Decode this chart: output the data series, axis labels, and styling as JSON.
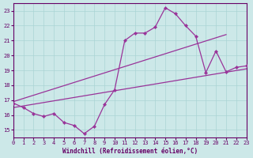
{
  "xlabel": "Windchill (Refroidissement éolien,°C)",
  "xlim": [
    0,
    23
  ],
  "ylim": [
    14.5,
    23.5
  ],
  "yticks": [
    15,
    16,
    17,
    18,
    19,
    20,
    21,
    22,
    23
  ],
  "xticks": [
    0,
    1,
    2,
    3,
    4,
    5,
    6,
    7,
    8,
    9,
    10,
    11,
    12,
    13,
    14,
    15,
    16,
    17,
    18,
    19,
    20,
    21,
    22,
    23
  ],
  "background_color": "#cce8e8",
  "grid_color": "#aad4d4",
  "line_color": "#993399",
  "marker_line_x": [
    0,
    1,
    2,
    3,
    4,
    5,
    6,
    7,
    8,
    9,
    10,
    11,
    12,
    13,
    14,
    15,
    16,
    17,
    18,
    19,
    20,
    21,
    22,
    23
  ],
  "marker_line_y": [
    16.8,
    16.5,
    16.1,
    15.9,
    16.1,
    15.5,
    15.3,
    14.75,
    15.25,
    16.7,
    17.7,
    21.0,
    21.5,
    21.5,
    21.9,
    23.2,
    22.8,
    22.0,
    21.3,
    18.85,
    20.3,
    18.9,
    19.2,
    19.3
  ],
  "trend1_x": [
    0,
    21
  ],
  "trend1_y": [
    16.9,
    21.4
  ],
  "trend2_x": [
    0,
    23
  ],
  "trend2_y": [
    16.5,
    19.1
  ]
}
